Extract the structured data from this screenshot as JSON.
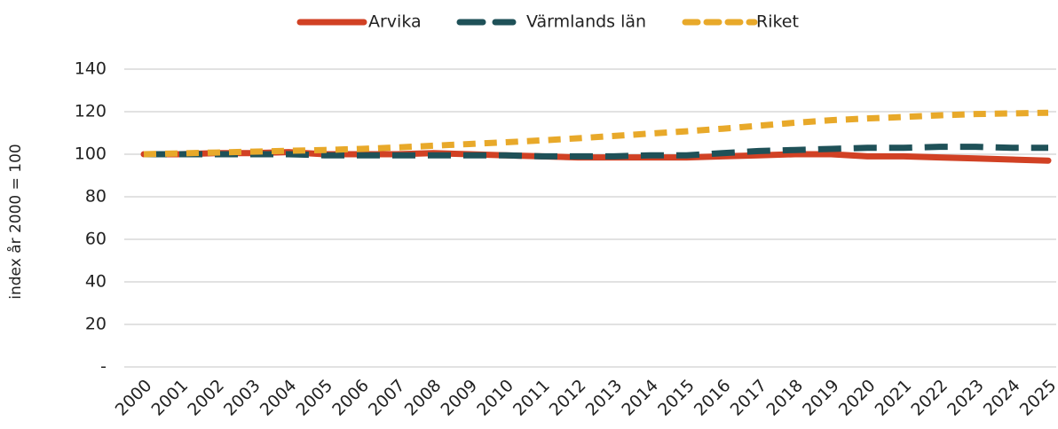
{
  "chart_data": {
    "type": "line",
    "y_label": "index år 2000 = 100",
    "categories": [
      "2000",
      "2001",
      "2002",
      "2003",
      "2004",
      "2005",
      "2006",
      "2007",
      "2008",
      "2009",
      "2010",
      "2011",
      "2012",
      "2013",
      "2014",
      "2015",
      "2016",
      "2017",
      "2018",
      "2019",
      "2020",
      "2021",
      "2022",
      "2023",
      "2024",
      "2025"
    ],
    "series": [
      {
        "name": "Arvika",
        "color": "#d14124",
        "dash": "solid",
        "values": [
          100,
          100,
          100.5,
          100.5,
          101,
          100,
          100,
          100,
          100.5,
          100,
          99.5,
          99,
          98.5,
          98.5,
          98.5,
          98.5,
          99,
          99.5,
          100,
          100,
          99,
          99,
          98.5,
          98,
          97.5,
          97
        ]
      },
      {
        "name": "Värmlands län",
        "color": "#1f5158",
        "dash": "long",
        "values": [
          100,
          100,
          100,
          100,
          100,
          99.5,
          99.5,
          99.5,
          99.5,
          99.5,
          99.5,
          99,
          99,
          99,
          99.5,
          99.5,
          100.5,
          101.5,
          102,
          102.5,
          103,
          103,
          103.5,
          103.5,
          103,
          103
        ]
      },
      {
        "name": "Riket",
        "color": "#e8a92a",
        "dash": "short",
        "values": [
          100,
          100.4,
          100.8,
          101.2,
          101.6,
          102,
          102.5,
          103.2,
          104,
          104.8,
          105.6,
          106.5,
          107.5,
          108.6,
          109.7,
          110.8,
          112,
          113.4,
          114.8,
          116,
          116.8,
          117.5,
          118.3,
          118.9,
          119.2,
          119.5
        ]
      }
    ],
    "ylim": [
      0,
      140
    ],
    "yticks": [
      {
        "value": 0,
        "label": "-"
      },
      20,
      40,
      60,
      80,
      100,
      120,
      140
    ],
    "grid": true,
    "legend": "top"
  }
}
